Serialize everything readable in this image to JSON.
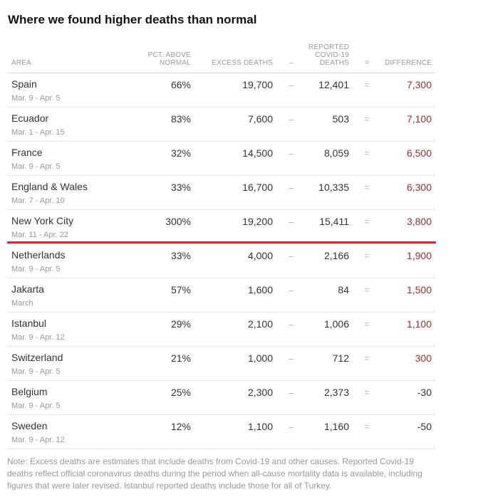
{
  "title": "Where we found higher deaths than normal",
  "headers": {
    "area": "AREA",
    "pct_line1": "PCT. ABOVE",
    "pct_line2": "NORMAL",
    "excess": "EXCESS DEATHS",
    "minus": "–",
    "reported_line1": "REPORTED",
    "reported_line2": "COVID-19",
    "reported_line3": "DEATHS",
    "equals": "=",
    "difference": "DIFFERENCE"
  },
  "rows": [
    {
      "area": "Spain",
      "dates": "Mar. 9 - Apr. 5",
      "pct": "66%",
      "excess": "19,700",
      "minus": "–",
      "reported": "12,401",
      "equals": "=",
      "difference": "7,300"
    },
    {
      "area": "Ecuador",
      "dates": "Mar. 1 - Apr. 15",
      "pct": "83%",
      "excess": "7,600",
      "minus": "–",
      "reported": "503",
      "equals": "=",
      "difference": "7,100"
    },
    {
      "area": "France",
      "dates": "Mar. 9 - Apr. 5",
      "pct": "32%",
      "excess": "14,500",
      "minus": "–",
      "reported": "8,059",
      "equals": "=",
      "difference": "6,500"
    },
    {
      "area": "England & Wales",
      "dates": "Mar. 7 - Apr. 10",
      "pct": "33%",
      "excess": "16,700",
      "minus": "–",
      "reported": "10,335",
      "equals": "=",
      "difference": "6,300"
    },
    {
      "area": "New York City",
      "dates": "Mar. 11 - Apr. 22",
      "pct": "300%",
      "excess": "19,200",
      "minus": "–",
      "reported": "15,411",
      "equals": "=",
      "difference": "3,800"
    },
    {
      "area": "Netherlands",
      "dates": "Mar. 9 - Apr. 5",
      "pct": "33%",
      "excess": "4,000",
      "minus": "–",
      "reported": "2,166",
      "equals": "=",
      "difference": "1,900"
    },
    {
      "area": "Jakarta",
      "dates": "March",
      "pct": "57%",
      "excess": "1,600",
      "minus": "–",
      "reported": "84",
      "equals": "=",
      "difference": "1,500"
    },
    {
      "area": "Istanbul",
      "dates": "Mar. 9 - Apr. 12",
      "pct": "29%",
      "excess": "2,100",
      "minus": "–",
      "reported": "1,006",
      "equals": "=",
      "difference": "1,100"
    },
    {
      "area": "Switzerland",
      "dates": "Mar. 9 - Apr. 5",
      "pct": "21%",
      "excess": "1,000",
      "minus": "–",
      "reported": "712",
      "equals": "=",
      "difference": "300"
    },
    {
      "area": "Belgium",
      "dates": "Mar. 9 - Apr. 5",
      "pct": "25%",
      "excess": "2,300",
      "minus": "–",
      "reported": "2,373",
      "equals": "=",
      "difference": "-30"
    },
    {
      "area": "Sweden",
      "dates": "Mar. 9 - Apr. 12",
      "pct": "12%",
      "excess": "1,100",
      "minus": "–",
      "reported": "1,160",
      "equals": "=",
      "difference": "-50"
    }
  ],
  "note": "Note: Excess deaths are estimates that include deaths from Covid-19 and other causes. Reported Covid-19 deaths reflect official coronavirus deaths during the period when all-cause mortality data is available, including figures that were later revised. Istanbul reported deaths include those for all of Turkey.",
  "colors": {
    "positive_difference": "#a82828",
    "negative_difference": "#333333",
    "highlight_line": "#e0242b"
  }
}
